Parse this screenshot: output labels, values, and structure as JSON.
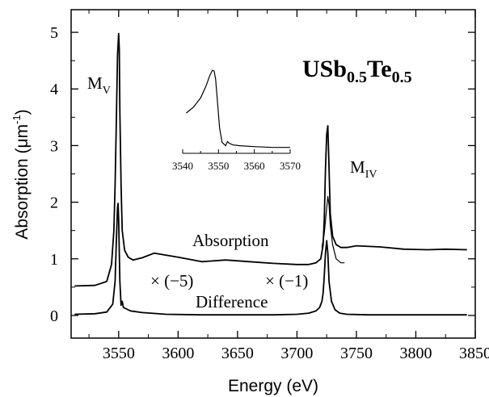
{
  "chart_data": {
    "type": "line",
    "title_main": "USb",
    "title_sub1": "0.5",
    "title_mid": "Te",
    "title_sub2": "0.5",
    "xlabel": "Energy (eV)",
    "ylabel_pre": "Absorption (",
    "ylabel_unit": "μm",
    "ylabel_sup": "-1",
    "ylabel_post": ")",
    "xlim": [
      3510,
      3850
    ],
    "ylim": [
      -0.4,
      5.4
    ],
    "xticks": [
      3550,
      3600,
      3650,
      3700,
      3750,
      3800,
      3850
    ],
    "yticks": [
      0,
      1,
      2,
      3,
      4,
      5
    ],
    "annotations": {
      "mv_main": "M",
      "mv_sub": "V",
      "miv_main": "M",
      "miv_sub": "IV",
      "absorption": "Absorption",
      "difference": "Difference",
      "scale_left": "× (−5)",
      "scale_right": "× (−1)"
    },
    "series": [
      {
        "name": "Absorption",
        "x": [
          3513,
          3530,
          3540,
          3544,
          3546,
          3547,
          3548,
          3549,
          3550,
          3550.5,
          3551,
          3552,
          3553,
          3555,
          3558,
          3562,
          3570,
          3580,
          3600,
          3620,
          3640,
          3660,
          3680,
          3700,
          3710,
          3716,
          3720,
          3722,
          3723,
          3724,
          3725,
          3726,
          3727,
          3728,
          3730,
          3733,
          3737,
          3742,
          3750,
          3770,
          3790,
          3810,
          3825,
          3843
        ],
        "y": [
          0.52,
          0.53,
          0.6,
          0.9,
          1.5,
          2.3,
          3.4,
          4.6,
          4.98,
          4.7,
          3.6,
          2.3,
          1.5,
          1.15,
          1.03,
          0.98,
          1.02,
          1.1,
          1.03,
          0.95,
          0.98,
          0.95,
          0.92,
          0.9,
          0.9,
          0.93,
          1.0,
          1.25,
          1.7,
          2.6,
          3.2,
          3.35,
          2.6,
          1.8,
          1.4,
          1.25,
          1.2,
          1.2,
          1.23,
          1.21,
          1.17,
          1.16,
          1.17,
          1.16
        ]
      },
      {
        "name": "Absorption (MIV shoulder)",
        "x": [
          3721,
          3723,
          3725,
          3726,
          3727,
          3728,
          3730,
          3733,
          3737,
          3740
        ],
        "y": [
          1.2,
          1.45,
          1.9,
          2.1,
          1.95,
          1.6,
          1.25,
          1.0,
          0.93,
          0.93
        ]
      },
      {
        "name": "Difference",
        "x": [
          3513,
          3530,
          3540,
          3545,
          3547,
          3548,
          3549,
          3549.5,
          3550,
          3551,
          3552,
          3553,
          3554,
          3556,
          3560,
          3570,
          3590,
          3620,
          3650,
          3680,
          3700,
          3710,
          3716,
          3719,
          3721,
          3722,
          3723,
          3724,
          3725,
          3726,
          3727,
          3729,
          3732,
          3736,
          3742,
          3760,
          3800,
          3843
        ],
        "y": [
          0.02,
          0.03,
          0.06,
          0.2,
          0.6,
          1.3,
          1.9,
          1.98,
          1.7,
          0.6,
          0.18,
          0.25,
          0.14,
          0.12,
          0.08,
          0.05,
          0.02,
          0.01,
          0.01,
          0.01,
          0.02,
          0.04,
          0.08,
          0.14,
          0.25,
          0.4,
          0.7,
          1.1,
          1.32,
          1.1,
          0.6,
          0.25,
          0.1,
          0.04,
          0.02,
          0.01,
          0.01,
          0.01
        ]
      }
    ],
    "inset": {
      "xlim": [
        3540,
        3570
      ],
      "xticks": [
        3540,
        3550,
        3560,
        3570
      ],
      "x": [
        3541,
        3543,
        3545,
        3546.5,
        3547.5,
        3548.3,
        3548.8,
        3549.2,
        3549.7,
        3550.3,
        3551,
        3552,
        3552.5,
        3553,
        3554,
        3556,
        3560,
        3565,
        3570
      ],
      "y": [
        0.48,
        0.55,
        0.66,
        0.8,
        0.92,
        0.99,
        0.98,
        0.88,
        0.62,
        0.3,
        0.13,
        0.09,
        0.14,
        0.12,
        0.1,
        0.09,
        0.08,
        0.07,
        0.07
      ]
    }
  }
}
